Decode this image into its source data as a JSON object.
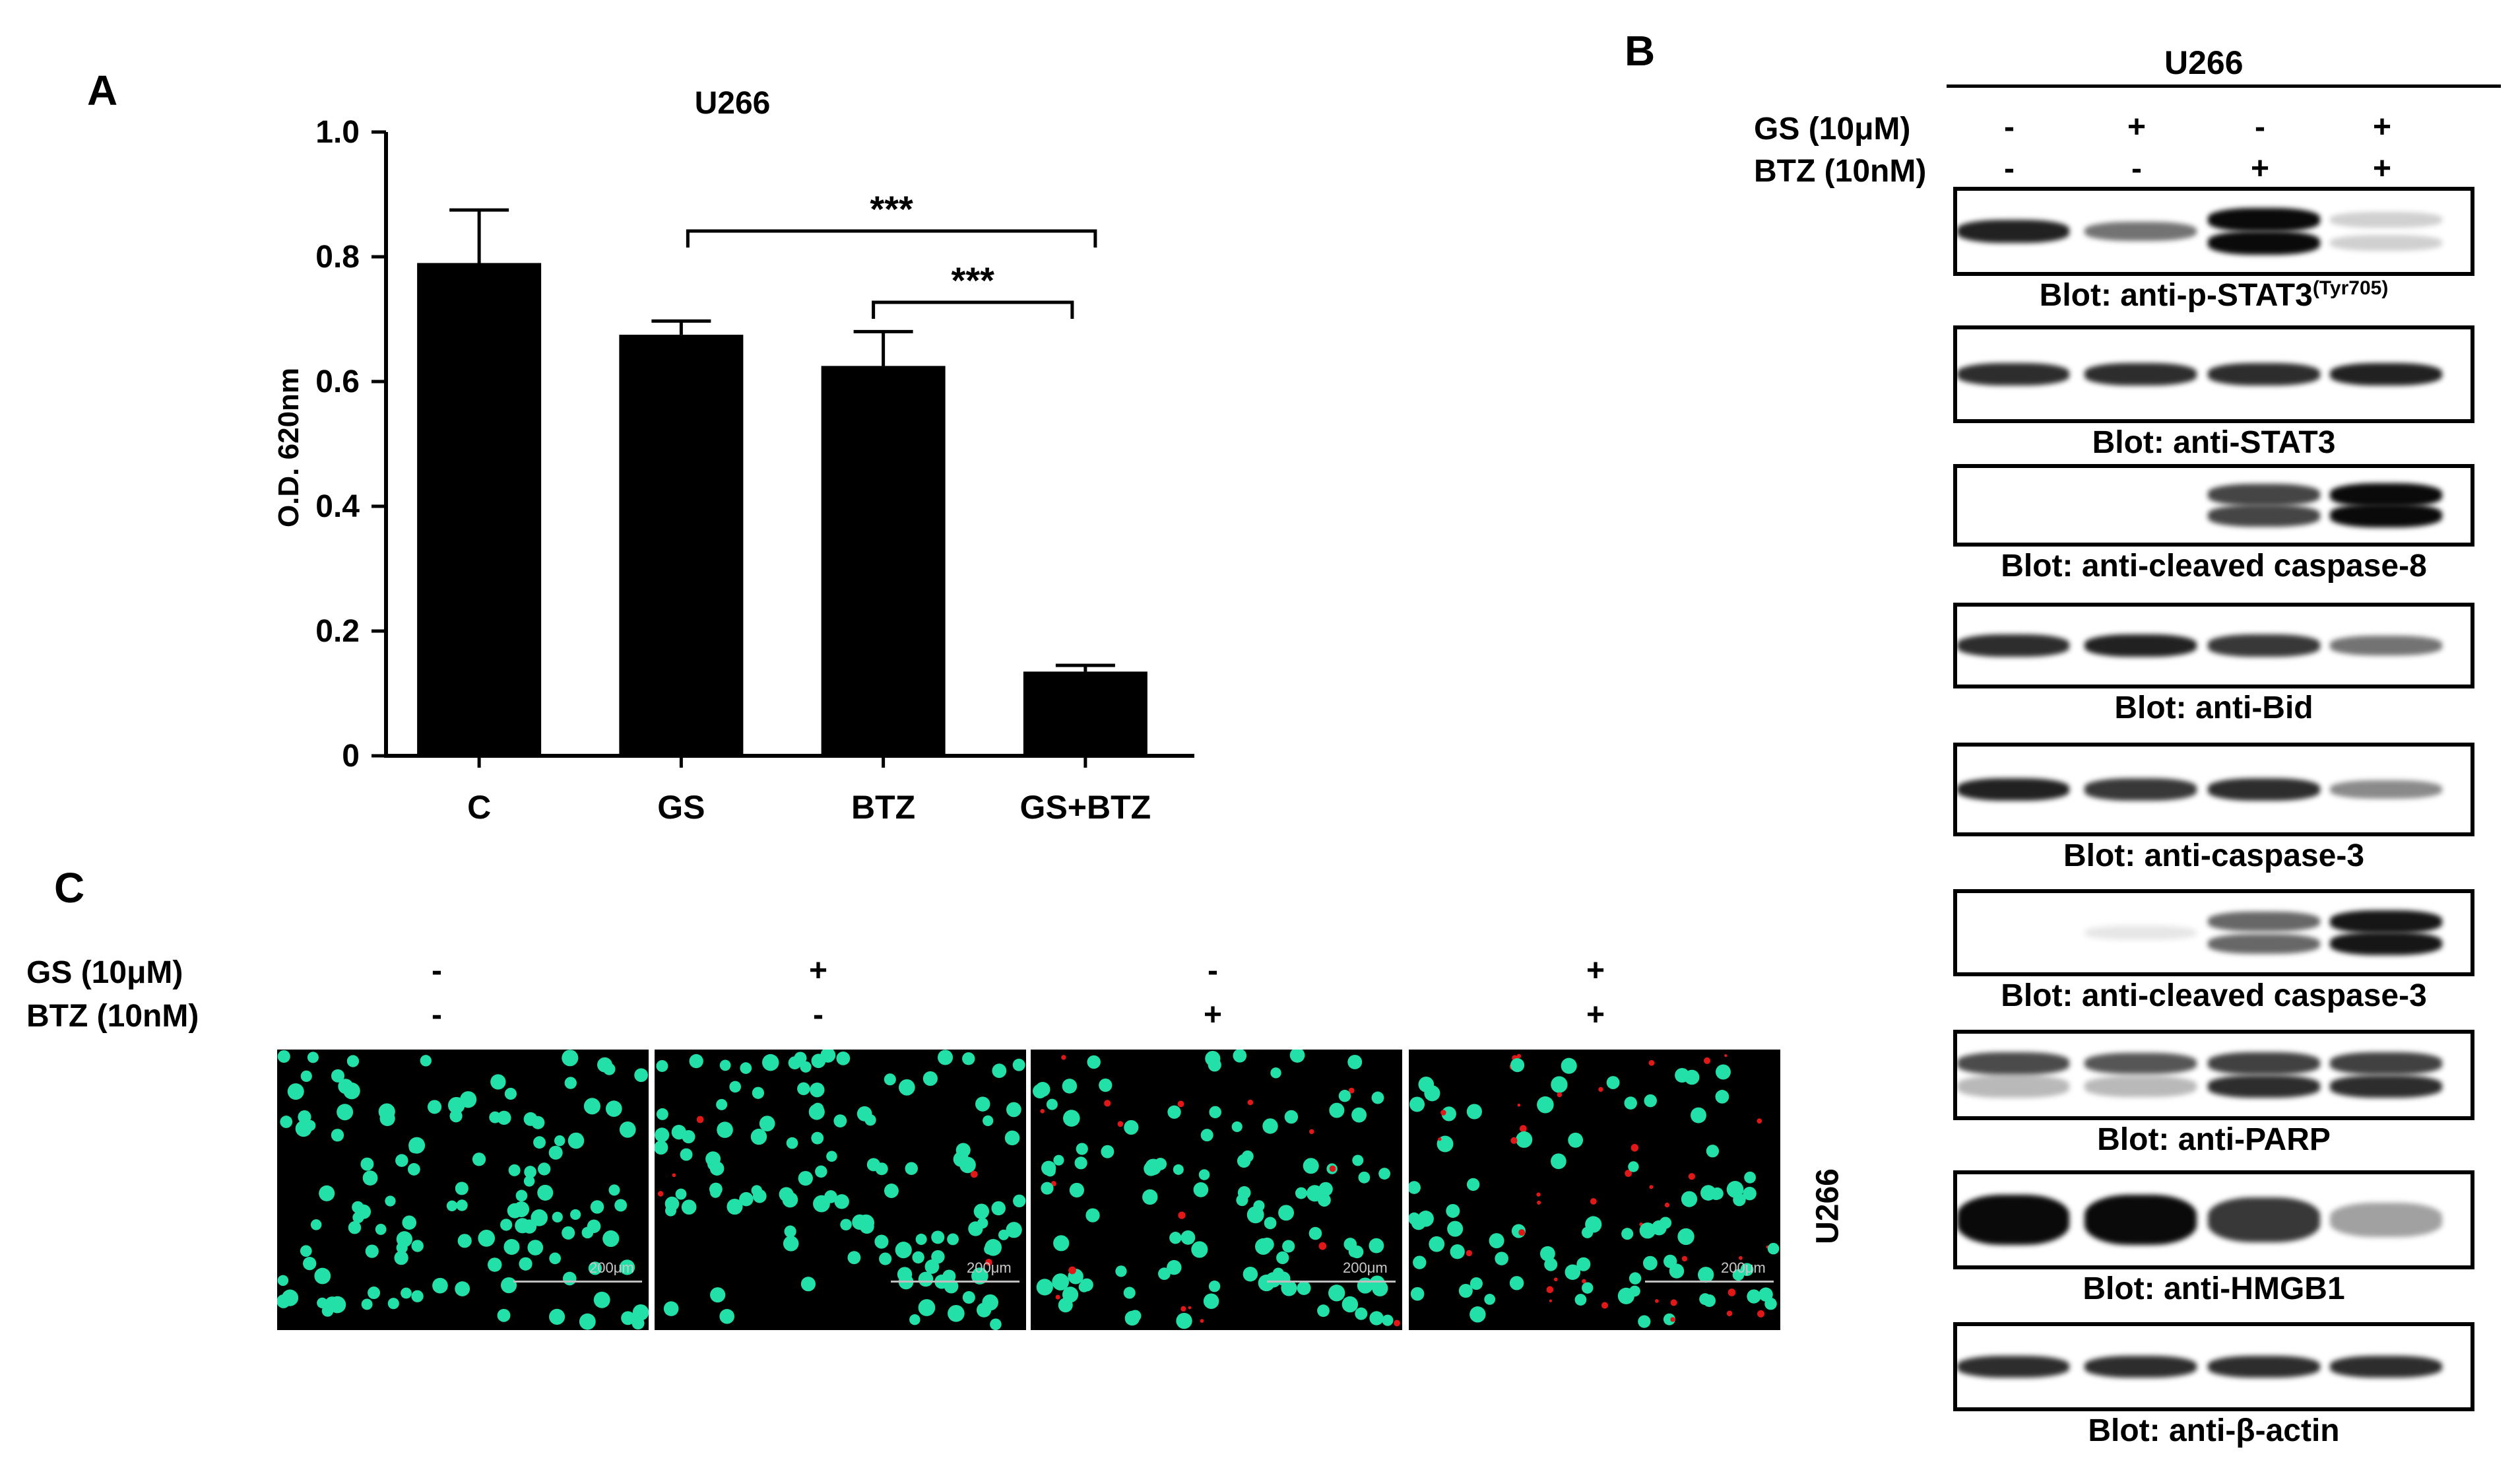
{
  "panels": {
    "a": "A",
    "b": "B",
    "c": "C"
  },
  "chart_data": {
    "type": "bar",
    "title": "U266",
    "categories": [
      "C",
      "GS",
      "BTZ",
      "GS+BTZ"
    ],
    "values": [
      0.79,
      0.675,
      0.625,
      0.135
    ],
    "errors": [
      0.085,
      0.022,
      0.055,
      0.01
    ],
    "ylabel": "O.D. 620nm",
    "xlabel": "",
    "ylim": [
      0,
      1.0
    ],
    "yticks": [
      "0",
      "0.2",
      "0.4",
      "0.6",
      "0.8",
      "1.0"
    ],
    "grid": false,
    "significance": [
      {
        "from": "GS",
        "to": "GS+BTZ",
        "label": "***"
      },
      {
        "from": "BTZ",
        "to": "GS+BTZ",
        "label": "***"
      }
    ]
  },
  "western": {
    "cell_line": "U266",
    "rows": [
      {
        "label": "GS (10μM)",
        "values": [
          "-",
          "+",
          "-",
          "+"
        ]
      },
      {
        "label": "BTZ (10nM)",
        "values": [
          "-",
          "-",
          "+",
          "+"
        ]
      }
    ],
    "blots": [
      {
        "label": "Blot: anti-p-STAT3",
        "sup": "(Tyr705)"
      },
      {
        "label": "Blot: anti-STAT3"
      },
      {
        "label": "Blot: anti-cleaved caspase-8"
      },
      {
        "label": "Blot: anti-Bid"
      },
      {
        "label": "Blot: anti-caspase-3"
      },
      {
        "label": "Blot: anti-cleaved caspase-3"
      },
      {
        "label": "Blot: anti-PARP"
      },
      {
        "label": "Blot: anti-HMGB1"
      },
      {
        "label": "Blot: anti-β-actin"
      }
    ],
    "intensities": [
      [
        0.9,
        0.55,
        1.0,
        0.15
      ],
      [
        0.85,
        0.85,
        0.85,
        0.9
      ],
      [
        0.0,
        0.0,
        0.75,
        1.0
      ],
      [
        0.85,
        0.9,
        0.8,
        0.55
      ],
      [
        0.9,
        0.8,
        0.85,
        0.45
      ],
      [
        0.0,
        0.05,
        0.6,
        0.95
      ],
      [
        0.8,
        0.75,
        0.85,
        0.85
      ],
      [
        1.0,
        1.0,
        0.8,
        0.35
      ],
      [
        0.85,
        0.85,
        0.85,
        0.85
      ]
    ]
  },
  "microscopy": {
    "rows": [
      {
        "label": "GS (10μM)",
        "values": [
          "-",
          "+",
          "-",
          "+"
        ]
      },
      {
        "label": "BTZ (10nM)",
        "values": [
          "-",
          "-",
          "+",
          "+"
        ]
      }
    ],
    "scale_label": "200μm",
    "cell_line": "U266",
    "red_fraction": [
      0.0,
      0.04,
      0.15,
      0.3
    ],
    "colors": {
      "live": "#22e0a8",
      "dead": "#e01818",
      "background": "#000000"
    }
  }
}
